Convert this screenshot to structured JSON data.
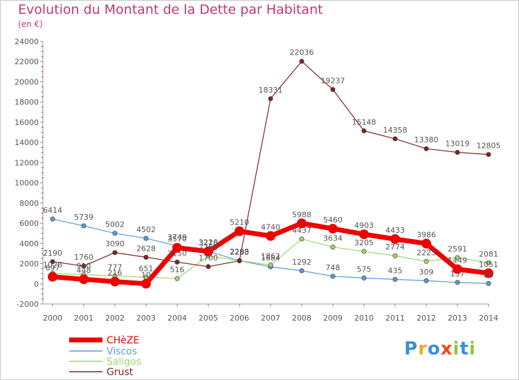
{
  "page": {
    "title": "Evolution du Montant de la Dette par Habitant",
    "subtitle": "(en €)",
    "logo_letters": [
      {
        "ch": "P",
        "color": "#3a8fd6"
      },
      {
        "ch": "r",
        "color": "#f5a623"
      },
      {
        "ch": "o",
        "color": "#3a8fd6"
      },
      {
        "ch": "x",
        "color": "#e94e1b"
      },
      {
        "ch": "i",
        "color": "#8cc63f"
      },
      {
        "ch": "t",
        "color": "#3a8fd6"
      },
      {
        "ch": "i",
        "color": "#8cc63f"
      }
    ]
  },
  "chart_data": {
    "type": "line",
    "x": [
      "2000",
      "2001",
      "2002",
      "2003",
      "2004",
      "2005",
      "2006",
      "2007",
      "2008",
      "2009",
      "2010",
      "2011",
      "2012",
      "2013",
      "2014"
    ],
    "ylim": [
      -2000,
      24000
    ],
    "yticks": [
      "-2000",
      "0",
      "2000",
      "4000",
      "6000",
      "8000",
      "10000",
      "12000",
      "14000",
      "16000",
      "18000",
      "20000",
      "22000",
      "24000"
    ],
    "grid": false,
    "legend_position": "bottom-left",
    "series": [
      {
        "name": "Viscos",
        "color": "#5b9bd5",
        "values": [
          6414,
          5739,
          5002,
          4502,
          3749,
          3223,
          2283,
          1684,
          1292,
          748,
          575,
          435,
          309,
          137,
          26
        ],
        "labels": [
          "6414",
          "5739",
          "5002",
          "4502",
          "3749",
          "3223",
          "2283",
          "1684",
          "1292",
          "748",
          "575",
          "435",
          "309",
          "137",
          "26"
        ]
      },
      {
        "name": "Saligos",
        "color": "#9ed56a",
        "values": [
          1026,
          910,
          777,
          651,
          516,
          2760,
          2298,
          1862,
          4437,
          3634,
          3205,
          2774,
          2223,
          2591,
          2081
        ],
        "labels": [
          "1026",
          "910",
          "777",
          "651",
          "516",
          "2760",
          "2298",
          "1862",
          "4437",
          "3634",
          "3205",
          "2774",
          "2223",
          "2591",
          "2081"
        ]
      },
      {
        "name": "Grust",
        "color": "#7b2525",
        "values": [
          2190,
          1760,
          3090,
          2628,
          2150,
          1700,
          2283,
          18331,
          22036,
          19237,
          15148,
          14358,
          13380,
          13019,
          12805
        ],
        "labels": [
          "2190",
          "1760",
          "3090",
          "2628",
          "2150",
          "1700",
          "2283",
          "18331",
          "22036",
          "19237",
          "15148",
          "14358",
          "13380",
          "13019",
          "12805"
        ]
      },
      {
        "name": "CHèZE",
        "color": "#ee0000",
        "values": [
          697,
          448,
          216,
          10,
          3570,
          3216,
          5210,
          4740,
          5988,
          5460,
          4903,
          4433,
          3986,
          1449,
          1051
        ],
        "labels": [
          "697",
          "448",
          "216",
          "10",
          "3570",
          "3216",
          "5210",
          "4740",
          "5988",
          "5460",
          "4903",
          "4433",
          "3986",
          "1449",
          "1051"
        ]
      }
    ]
  },
  "legend": [
    "CHèZE",
    "Viscos",
    "Saligos",
    "Grust"
  ]
}
